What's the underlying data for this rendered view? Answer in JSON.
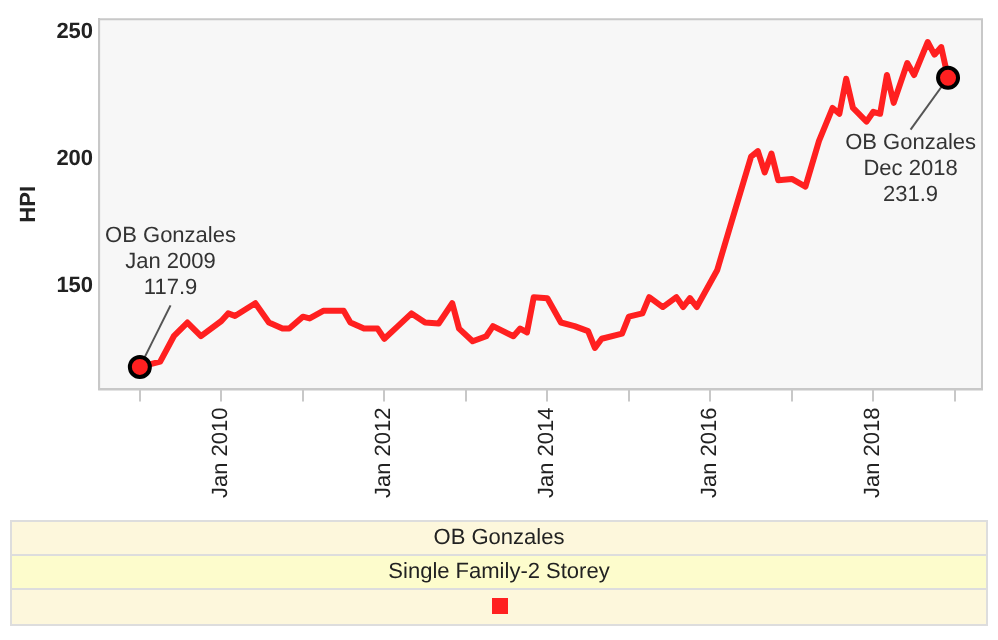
{
  "chart_data": {
    "type": "line",
    "ylabel": "HPI",
    "legend_title": "OB Gonzales",
    "legend": "bottom",
    "grid": false,
    "marker": "none",
    "line_style": "solid",
    "xlim": [
      "2008-07",
      "2019-05"
    ],
    "ylim": [
      109,
      255
    ],
    "yticks": [
      150,
      200,
      250
    ],
    "xticks": [
      {
        "value": "2009-01",
        "label": null
      },
      {
        "value": "2010-01",
        "label": "Jan 2010"
      },
      {
        "value": "2011-01",
        "label": null
      },
      {
        "value": "2012-01",
        "label": "Jan 2012"
      },
      {
        "value": "2013-01",
        "label": null
      },
      {
        "value": "2014-01",
        "label": "Jan 2014"
      },
      {
        "value": "2015-01",
        "label": null
      },
      {
        "value": "2016-01",
        "label": "Jan 2016"
      },
      {
        "value": "2017-01",
        "label": null
      },
      {
        "value": "2018-01",
        "label": "Jan 2018"
      },
      {
        "value": "2019-01",
        "label": null
      }
    ],
    "x": [
      "2009-01",
      "2009-04",
      "2009-06",
      "2009-08",
      "2009-10",
      "2010-01",
      "2010-02",
      "2010-03",
      "2010-06",
      "2010-08",
      "2010-10",
      "2010-11",
      "2011-01",
      "2011-02",
      "2011-04",
      "2011-07",
      "2011-08",
      "2011-10",
      "2011-12",
      "2012-01",
      "2012-03",
      "2012-05",
      "2012-07",
      "2012-09",
      "2012-11",
      "2012-12",
      "2013-02",
      "2013-04",
      "2013-05",
      "2013-08",
      "2013-09",
      "2013-10",
      "2013-11",
      "2014-01",
      "2014-03",
      "2014-05",
      "2014-07",
      "2014-08",
      "2014-09",
      "2014-12",
      "2015-01",
      "2015-03",
      "2015-04",
      "2015-06",
      "2015-08",
      "2015-09",
      "2015-10",
      "2015-11",
      "2016-02",
      "2016-04",
      "2016-07",
      "2016-08",
      "2016-09",
      "2016-10",
      "2016-11",
      "2017-01",
      "2017-03",
      "2017-05",
      "2017-07",
      "2017-08",
      "2017-09",
      "2017-10",
      "2017-12",
      "2018-01",
      "2018-02",
      "2018-03",
      "2018-04",
      "2018-06",
      "2018-07",
      "2018-09",
      "2018-10",
      "2018-11",
      "2018-12"
    ],
    "series": [
      {
        "name": "Single Family-2 Storey",
        "color": "#ff2020",
        "values": [
          117.9,
          120,
          130,
          135.4,
          130,
          136,
          139,
          138,
          143,
          135.4,
          133,
          133,
          137.7,
          137,
          140,
          140,
          135.4,
          133,
          133,
          129,
          134,
          139,
          135.4,
          135,
          143,
          133,
          128,
          130,
          134,
          130,
          133,
          131.5,
          145.4,
          145,
          135.4,
          134,
          132,
          125.4,
          129,
          131,
          137.7,
          139,
          145.4,
          141.5,
          145.4,
          141.5,
          145,
          141.5,
          156,
          174,
          200.8,
          203,
          194.6,
          202,
          191.5,
          192,
          189,
          207,
          220,
          217.7,
          231.5,
          220,
          214.6,
          218.5,
          217.7,
          233,
          222,
          237.7,
          233,
          246,
          241,
          244,
          231.9
        ]
      }
    ],
    "annotations": [
      {
        "text": "OB Gonzales\nJan 2009\n117.9",
        "x": "2009-01",
        "y": 117.9
      },
      {
        "text": "OB Gonzales\nDec 2018\n231.9",
        "x": "2018-12",
        "y": 231.9
      }
    ]
  }
}
